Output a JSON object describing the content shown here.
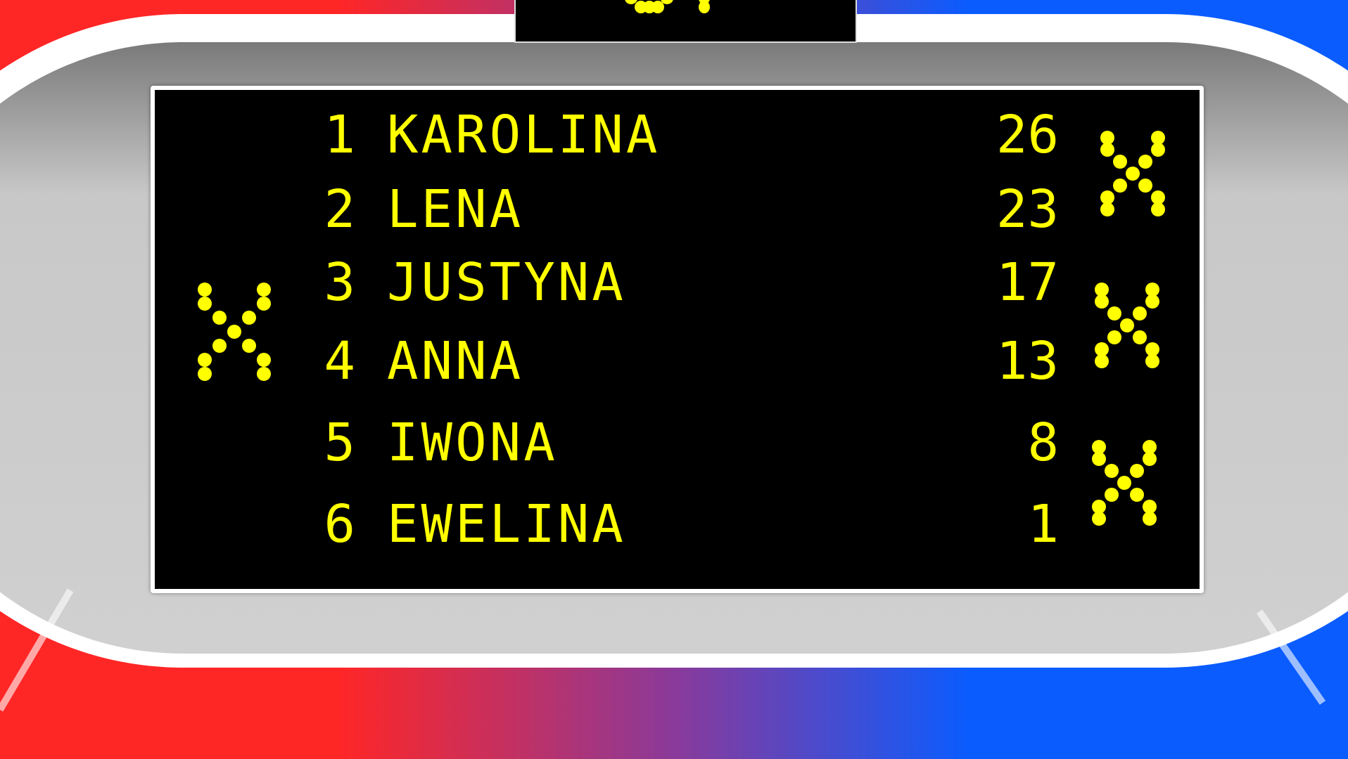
{
  "colors": {
    "left_team": "#ff2626",
    "right_team": "#0a5cff",
    "led": "#ffff00",
    "screen": "#000000"
  },
  "leaderboard": [
    {
      "rank": "1",
      "name": "KAROLINA",
      "score": "26"
    },
    {
      "rank": "2",
      "name": "LENA",
      "score": "23"
    },
    {
      "rank": "3",
      "name": "JUSTYNA",
      "score": "17"
    },
    {
      "rank": "4",
      "name": "ANNA",
      "score": "13"
    },
    {
      "rank": "5",
      "name": "IWONA",
      "score": "8"
    },
    {
      "rank": "6",
      "name": "EWELINA",
      "score": "1"
    }
  ],
  "strikes": {
    "left": 1,
    "right": 3
  }
}
